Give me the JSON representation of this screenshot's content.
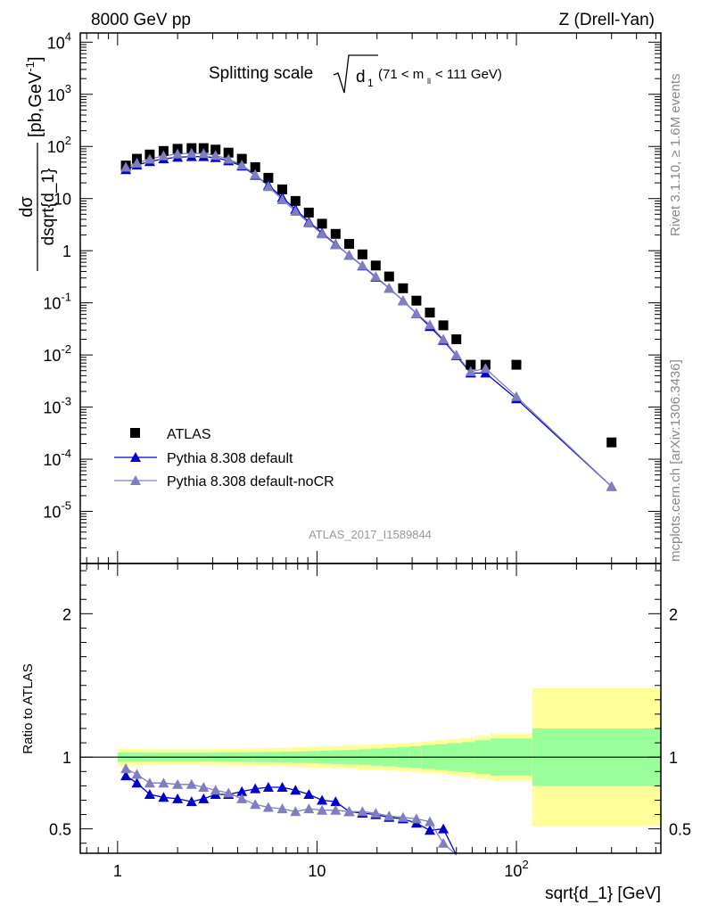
{
  "header": {
    "left": "8000 GeV pp",
    "right": "Z (Drell-Yan)"
  },
  "side": {
    "rivet": "Rivet 3.1.10, ≥ 1.6M events",
    "mcplots": "mcplots.cern.ch [arXiv:1306.3436]"
  },
  "analysis_label": "ATLAS_2017_I1589844",
  "chart_data": [
    {
      "type": "scatter",
      "title": "Splitting scale √d₁ (71 < mₗₗ < 111 GeV)",
      "title_main": "Splitting scale",
      "title_sub": "(71 < m",
      "title_sub_idx": "ll",
      "title_sub_end": " < 111 GeV)",
      "xlabel": "sqrt{d_1} [GeV]",
      "ylabel": "dσ / dsqrt{d_1} [pb,GeV⁻¹]",
      "xscale": "log",
      "yscale": "log",
      "xlim": [
        0.65,
        530
      ],
      "ylim": [
        1e-06,
        15000
      ],
      "xticks": [
        1,
        10,
        100
      ],
      "yticks": [
        "10^-5",
        "10^-4",
        "10^-3",
        "10^-2",
        "10^-1",
        "1",
        "10",
        "10^2",
        "10^3",
        "10^4"
      ],
      "legend_position": "bottom-left",
      "series": [
        {
          "name": "ATLAS",
          "color": "#000000",
          "marker": "square",
          "x": [
            1.1,
            1.25,
            1.45,
            1.7,
            2.0,
            2.35,
            2.7,
            3.1,
            3.6,
            4.2,
            4.9,
            5.7,
            6.7,
            7.8,
            9.1,
            10.6,
            12.4,
            14.5,
            16.9,
            19.7,
            23.0,
            27.0,
            31.5,
            36.8,
            43.0,
            50.0,
            59.0,
            70.0,
            100.0,
            300.0
          ],
          "y": [
            43,
            58,
            70,
            82,
            90,
            93,
            93,
            87,
            76,
            58,
            40,
            25,
            15,
            9,
            5.4,
            3.3,
            2.1,
            1.35,
            0.85,
            0.52,
            0.32,
            0.19,
            0.11,
            0.065,
            0.037,
            0.02,
            0.0065,
            0.0065,
            0.0065,
            0.00021
          ]
        },
        {
          "name": "Pythia 8.308 default",
          "color": "#0000cc",
          "marker": "triangle",
          "x": [
            1.1,
            1.25,
            1.45,
            1.7,
            2.0,
            2.35,
            2.7,
            3.1,
            3.6,
            4.2,
            4.9,
            5.7,
            6.7,
            7.8,
            9.1,
            10.6,
            12.4,
            14.5,
            16.9,
            19.7,
            23.0,
            27.0,
            31.5,
            36.8,
            43.0,
            50.0,
            59.0,
            70.0,
            100.0,
            300.0
          ],
          "y": [
            36,
            44,
            51,
            58,
            62,
            64,
            64,
            61,
            53,
            42,
            28,
            18,
            10.5,
            6.2,
            3.6,
            2.2,
            1.33,
            0.82,
            0.51,
            0.31,
            0.19,
            0.11,
            0.062,
            0.035,
            0.019,
            0.0097,
            0.0045,
            0.0045,
            0.00145,
            3e-05
          ]
        },
        {
          "name": "Pythia 8.308 default-noCR",
          "color": "#7f7fbf",
          "marker": "triangle",
          "x": [
            1.1,
            1.25,
            1.45,
            1.7,
            2.0,
            2.35,
            2.7,
            3.1,
            3.6,
            4.2,
            4.9,
            5.7,
            6.7,
            7.8,
            9.1,
            10.6,
            12.4,
            14.5,
            16.9,
            19.7,
            23.0,
            27.0,
            31.5,
            36.8,
            43.0,
            50.0,
            59.0,
            70.0,
            100.0,
            300.0
          ],
          "y": [
            40,
            48,
            57,
            66,
            72,
            74,
            73,
            67,
            57,
            44,
            29,
            17,
            9.5,
            5.7,
            3.4,
            2.1,
            1.3,
            0.82,
            0.52,
            0.32,
            0.19,
            0.11,
            0.063,
            0.038,
            0.02,
            0.01,
            0.0048,
            0.0055,
            0.0016,
            3e-05
          ]
        }
      ]
    },
    {
      "type": "scatter",
      "ylabel": "Ratio to ATLAS",
      "xscale": "log",
      "xlim": [
        0.65,
        530
      ],
      "ylim": [
        0.33,
        2.35
      ],
      "yticks": [
        0.5,
        1,
        2
      ],
      "ytick_labels": [
        "0.5",
        "1",
        "2"
      ],
      "bands": {
        "edges": [
          1.0,
          1.15,
          1.35,
          1.6,
          1.9,
          2.25,
          2.6,
          3.0,
          3.5,
          4.1,
          4.8,
          5.6,
          6.5,
          7.5,
          8.8,
          10.2,
          11.8,
          13.7,
          16.0,
          18.5,
          21.5,
          25.0,
          29.0,
          33.5,
          39.0,
          45.0,
          53.0,
          62.0,
          74.0,
          120.0,
          530.0
        ],
        "stat_sys_yellow": [
          0.06,
          0.058,
          0.056,
          0.055,
          0.055,
          0.055,
          0.056,
          0.057,
          0.058,
          0.06,
          0.062,
          0.064,
          0.066,
          0.069,
          0.072,
          0.075,
          0.078,
          0.082,
          0.086,
          0.09,
          0.094,
          0.098,
          0.103,
          0.11,
          0.118,
          0.126,
          0.135,
          0.15,
          0.165,
          0.48
        ],
        "stat_green": [
          0.033,
          0.032,
          0.031,
          0.031,
          0.031,
          0.031,
          0.031,
          0.032,
          0.033,
          0.034,
          0.035,
          0.036,
          0.038,
          0.04,
          0.042,
          0.045,
          0.048,
          0.051,
          0.055,
          0.06,
          0.065,
          0.07,
          0.076,
          0.083,
          0.09,
          0.097,
          0.105,
          0.118,
          0.13,
          0.2
        ]
      },
      "series": [
        {
          "name": "Pythia 8.308 default",
          "color": "#0000cc",
          "x": [
            1.1,
            1.25,
            1.45,
            1.7,
            2.0,
            2.35,
            2.7,
            3.1,
            3.6,
            4.2,
            4.9,
            5.7,
            6.7,
            7.8,
            9.1,
            10.6,
            12.4,
            14.5,
            16.9,
            19.7,
            23.0,
            27.0,
            31.5,
            36.8,
            43.0,
            50.0
          ],
          "y": [
            0.87,
            0.82,
            0.74,
            0.72,
            0.71,
            0.69,
            0.71,
            0.74,
            0.74,
            0.76,
            0.78,
            0.79,
            0.79,
            0.77,
            0.74,
            0.7,
            0.69,
            0.62,
            0.61,
            0.6,
            0.58,
            0.57,
            0.54,
            0.49,
            0.5,
            0.3
          ]
        },
        {
          "name": "Pythia 8.308 default-noCR",
          "color": "#7f7fbf",
          "x": [
            1.1,
            1.25,
            1.45,
            1.7,
            2.0,
            2.35,
            2.7,
            3.1,
            3.6,
            4.2,
            4.9,
            5.7,
            6.7,
            7.8,
            9.1,
            10.6,
            12.4,
            14.5,
            16.9,
            19.7,
            23.0,
            27.0,
            31.5,
            36.8,
            43.0,
            50.0
          ],
          "y": [
            0.92,
            0.88,
            0.82,
            0.82,
            0.81,
            0.81,
            0.79,
            0.77,
            0.75,
            0.71,
            0.67,
            0.65,
            0.64,
            0.62,
            0.64,
            0.63,
            0.63,
            0.62,
            0.62,
            0.61,
            0.59,
            0.58,
            0.57,
            0.55,
            0.4,
            0.25
          ]
        }
      ]
    }
  ]
}
